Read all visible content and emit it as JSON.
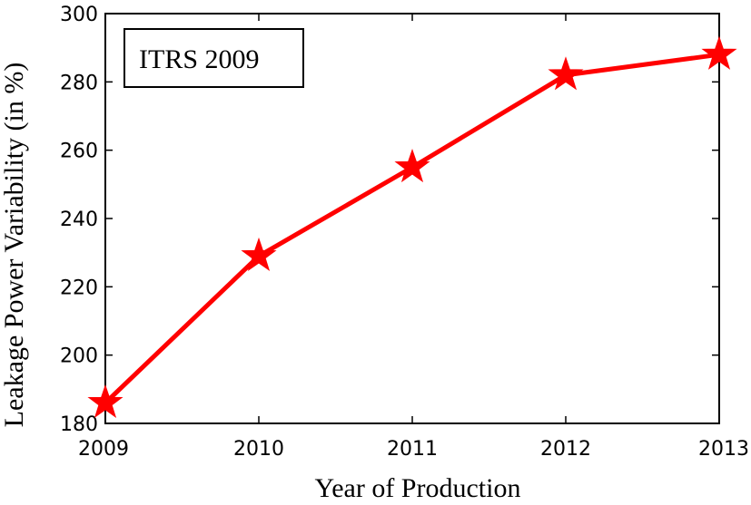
{
  "chart_data": {
    "type": "line",
    "title": "",
    "xlabel": "Year of Production",
    "ylabel": "Leakage Power Variability (in %)",
    "x": [
      2009,
      2010,
      2011,
      2012,
      2013
    ],
    "series": [
      {
        "name": "ITRS 2009",
        "values": [
          186,
          229,
          255,
          282,
          288
        ],
        "color": "#ff0000",
        "marker": "star"
      }
    ],
    "xlim": [
      2009,
      2013
    ],
    "ylim": [
      180,
      300
    ],
    "xticks": [
      "2009",
      "2010",
      "2011",
      "2012",
      "2013"
    ],
    "yticks": [
      "180",
      "200",
      "220",
      "240",
      "260",
      "280",
      "300"
    ],
    "grid": false,
    "legend": {
      "placement": "top-left",
      "entries": [
        "ITRS 2009"
      ]
    }
  }
}
